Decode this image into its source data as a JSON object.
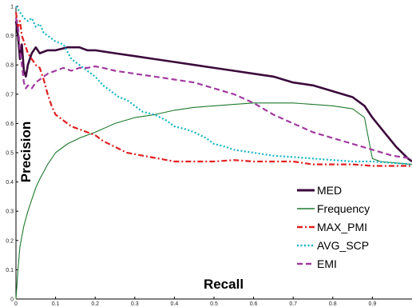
{
  "chart_data": {
    "type": "line",
    "title": "",
    "xlabel": "Recall",
    "ylabel": "Precision",
    "xlim": [
      0,
      1
    ],
    "ylim": [
      0,
      1
    ],
    "x_ticks": [
      "0",
      "0.1",
      "0.2",
      "0.3",
      "0.4",
      "0.5",
      "0.6",
      "0.7",
      "0.8",
      "0.9"
    ],
    "y_ticks": [
      "0",
      "0.1",
      "0.2",
      "0.3",
      "0.4",
      "0.5",
      "0.6",
      "0.7",
      "0.8",
      "0.9",
      "1"
    ],
    "legend_position": "bottom-right",
    "grid": false,
    "series": [
      {
        "name": "MED",
        "color": "#3b0a3b",
        "style": "solid",
        "points": [
          [
            0.0,
            0.95
          ],
          [
            0.005,
            0.9
          ],
          [
            0.01,
            0.82
          ],
          [
            0.015,
            0.87
          ],
          [
            0.02,
            0.78
          ],
          [
            0.025,
            0.76
          ],
          [
            0.03,
            0.8
          ],
          [
            0.04,
            0.84
          ],
          [
            0.05,
            0.86
          ],
          [
            0.06,
            0.84
          ],
          [
            0.08,
            0.85
          ],
          [
            0.1,
            0.85
          ],
          [
            0.13,
            0.86
          ],
          [
            0.16,
            0.86
          ],
          [
            0.18,
            0.85
          ],
          [
            0.2,
            0.85
          ],
          [
            0.25,
            0.84
          ],
          [
            0.3,
            0.83
          ],
          [
            0.35,
            0.82
          ],
          [
            0.4,
            0.81
          ],
          [
            0.45,
            0.8
          ],
          [
            0.5,
            0.79
          ],
          [
            0.55,
            0.78
          ],
          [
            0.6,
            0.77
          ],
          [
            0.65,
            0.76
          ],
          [
            0.7,
            0.74
          ],
          [
            0.75,
            0.73
          ],
          [
            0.8,
            0.71
          ],
          [
            0.85,
            0.69
          ],
          [
            0.88,
            0.66
          ],
          [
            0.9,
            0.62
          ],
          [
            0.93,
            0.57
          ],
          [
            0.96,
            0.52
          ],
          [
            0.99,
            0.48
          ],
          [
            1.0,
            0.47
          ]
        ]
      },
      {
        "name": "Frequency",
        "color": "#1f7a2e",
        "style": "solid",
        "points": [
          [
            0.0,
            0.0
          ],
          [
            0.005,
            0.1
          ],
          [
            0.01,
            0.18
          ],
          [
            0.02,
            0.25
          ],
          [
            0.03,
            0.3
          ],
          [
            0.04,
            0.34
          ],
          [
            0.05,
            0.38
          ],
          [
            0.06,
            0.41
          ],
          [
            0.08,
            0.46
          ],
          [
            0.1,
            0.5
          ],
          [
            0.13,
            0.53
          ],
          [
            0.16,
            0.55
          ],
          [
            0.2,
            0.57
          ],
          [
            0.25,
            0.6
          ],
          [
            0.3,
            0.62
          ],
          [
            0.35,
            0.63
          ],
          [
            0.4,
            0.645
          ],
          [
            0.45,
            0.655
          ],
          [
            0.5,
            0.66
          ],
          [
            0.55,
            0.665
          ],
          [
            0.6,
            0.67
          ],
          [
            0.65,
            0.67
          ],
          [
            0.7,
            0.67
          ],
          [
            0.75,
            0.665
          ],
          [
            0.8,
            0.66
          ],
          [
            0.85,
            0.65
          ],
          [
            0.88,
            0.62
          ],
          [
            0.89,
            0.55
          ],
          [
            0.9,
            0.48
          ],
          [
            0.92,
            0.47
          ],
          [
            0.96,
            0.465
          ],
          [
            1.0,
            0.46
          ]
        ]
      },
      {
        "name": "MAX_PMI",
        "color": "#e02020",
        "style": "dashdot",
        "points": [
          [
            0.0,
            0.98
          ],
          [
            0.005,
            0.93
          ],
          [
            0.01,
            0.95
          ],
          [
            0.015,
            0.9
          ],
          [
            0.02,
            0.88
          ],
          [
            0.03,
            0.84
          ],
          [
            0.04,
            0.82
          ],
          [
            0.05,
            0.8
          ],
          [
            0.06,
            0.79
          ],
          [
            0.07,
            0.75
          ],
          [
            0.08,
            0.7
          ],
          [
            0.09,
            0.66
          ],
          [
            0.1,
            0.63
          ],
          [
            0.12,
            0.61
          ],
          [
            0.14,
            0.59
          ],
          [
            0.16,
            0.58
          ],
          [
            0.18,
            0.57
          ],
          [
            0.2,
            0.56
          ],
          [
            0.22,
            0.54
          ],
          [
            0.25,
            0.52
          ],
          [
            0.28,
            0.5
          ],
          [
            0.32,
            0.49
          ],
          [
            0.36,
            0.48
          ],
          [
            0.4,
            0.47
          ],
          [
            0.45,
            0.47
          ],
          [
            0.5,
            0.47
          ],
          [
            0.55,
            0.475
          ],
          [
            0.6,
            0.47
          ],
          [
            0.65,
            0.47
          ],
          [
            0.7,
            0.47
          ],
          [
            0.75,
            0.46
          ],
          [
            0.8,
            0.46
          ],
          [
            0.85,
            0.46
          ],
          [
            0.9,
            0.455
          ],
          [
            0.95,
            0.455
          ],
          [
            1.0,
            0.455
          ]
        ]
      },
      {
        "name": "AVG_SCP",
        "color": "#14b5c4",
        "style": "dotted",
        "points": [
          [
            0.0,
            1.0
          ],
          [
            0.01,
            0.98
          ],
          [
            0.02,
            0.96
          ],
          [
            0.03,
            0.95
          ],
          [
            0.04,
            0.96
          ],
          [
            0.05,
            0.93
          ],
          [
            0.06,
            0.94
          ],
          [
            0.07,
            0.91
          ],
          [
            0.08,
            0.9
          ],
          [
            0.1,
            0.88
          ],
          [
            0.12,
            0.87
          ],
          [
            0.14,
            0.82
          ],
          [
            0.16,
            0.8
          ],
          [
            0.18,
            0.78
          ],
          [
            0.2,
            0.76
          ],
          [
            0.22,
            0.73
          ],
          [
            0.24,
            0.71
          ],
          [
            0.26,
            0.69
          ],
          [
            0.28,
            0.68
          ],
          [
            0.3,
            0.66
          ],
          [
            0.32,
            0.64
          ],
          [
            0.35,
            0.63
          ],
          [
            0.38,
            0.61
          ],
          [
            0.4,
            0.59
          ],
          [
            0.43,
            0.58
          ],
          [
            0.45,
            0.57
          ],
          [
            0.48,
            0.55
          ],
          [
            0.5,
            0.53
          ],
          [
            0.53,
            0.52
          ],
          [
            0.55,
            0.51
          ],
          [
            0.6,
            0.5
          ],
          [
            0.65,
            0.49
          ],
          [
            0.7,
            0.485
          ],
          [
            0.75,
            0.48
          ],
          [
            0.8,
            0.475
          ],
          [
            0.85,
            0.47
          ],
          [
            0.9,
            0.47
          ],
          [
            0.95,
            0.465
          ],
          [
            1.0,
            0.46
          ]
        ]
      },
      {
        "name": "EMI",
        "color": "#a03aa0",
        "style": "dashed",
        "points": [
          [
            0.0,
            0.96
          ],
          [
            0.005,
            0.93
          ],
          [
            0.01,
            0.85
          ],
          [
            0.015,
            0.8
          ],
          [
            0.02,
            0.74
          ],
          [
            0.025,
            0.72
          ],
          [
            0.03,
            0.73
          ],
          [
            0.04,
            0.72
          ],
          [
            0.05,
            0.74
          ],
          [
            0.06,
            0.75
          ],
          [
            0.08,
            0.77
          ],
          [
            0.1,
            0.78
          ],
          [
            0.12,
            0.79
          ],
          [
            0.14,
            0.78
          ],
          [
            0.16,
            0.79
          ],
          [
            0.18,
            0.79
          ],
          [
            0.2,
            0.795
          ],
          [
            0.22,
            0.79
          ],
          [
            0.25,
            0.78
          ],
          [
            0.3,
            0.77
          ],
          [
            0.35,
            0.76
          ],
          [
            0.4,
            0.75
          ],
          [
            0.45,
            0.74
          ],
          [
            0.5,
            0.72
          ],
          [
            0.55,
            0.7
          ],
          [
            0.6,
            0.67
          ],
          [
            0.65,
            0.63
          ],
          [
            0.7,
            0.6
          ],
          [
            0.75,
            0.57
          ],
          [
            0.8,
            0.55
          ],
          [
            0.85,
            0.53
          ],
          [
            0.9,
            0.51
          ],
          [
            0.95,
            0.49
          ],
          [
            1.0,
            0.48
          ]
        ]
      }
    ]
  }
}
